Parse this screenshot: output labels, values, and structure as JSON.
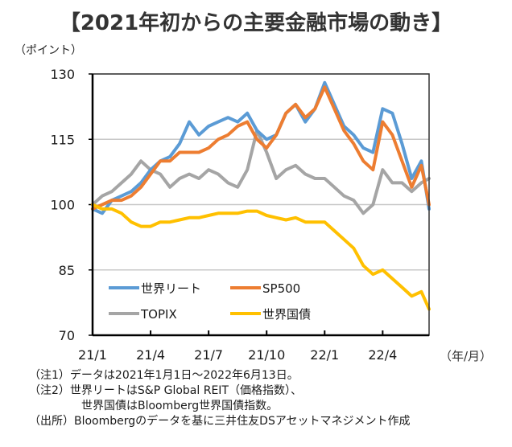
{
  "title": "【2021年初からの主要金融市場の動き】",
  "notes": [
    "（注1）データは2021年1月1日～2022年6月13日。",
    "（注2）世界リートはS&P Global REIT（価格指数）、",
    "世界国債はBloomberg世界国債指数。",
    "（出所）Bloombergのデータを基に三井住友DSアセットマネジメント作成"
  ],
  "chart_data": {
    "type": "line",
    "title": "【2021年初からの主要金融市場の動き】",
    "ylabel": "（ポイント）",
    "xlabel": "（年/月）",
    "ylim": [
      70,
      130
    ],
    "yticks": [
      70,
      85,
      100,
      115,
      130
    ],
    "xticks": [
      {
        "label": "21/1",
        "month": 0
      },
      {
        "label": "21/4",
        "month": 3
      },
      {
        "label": "21/7",
        "month": 6
      },
      {
        "label": "21/10",
        "month": 9
      },
      {
        "label": "22/1",
        "month": 12
      },
      {
        "label": "22/4",
        "month": 15
      }
    ],
    "xlim_months": [
      0,
      17.4
    ],
    "grid": "horizontal",
    "legend_position": "bottom-left inside",
    "x": [
      0,
      0.5,
      1,
      1.5,
      2,
      2.5,
      3,
      3.5,
      4,
      4.5,
      5,
      5.5,
      6,
      6.5,
      7,
      7.5,
      8,
      8.5,
      9,
      9.5,
      10,
      10.5,
      11,
      11.5,
      12,
      12.5,
      13,
      13.5,
      14,
      14.5,
      15,
      15.5,
      16,
      16.5,
      17,
      17.4
    ],
    "series": [
      {
        "name": "世界リート",
        "color": "#5b9bd5",
        "values": [
          99,
          98,
          101,
          102,
          103,
          105,
          108,
          110,
          111,
          114,
          119,
          116,
          118,
          119,
          120,
          119,
          121,
          117,
          115,
          116,
          121,
          123,
          119,
          122,
          128,
          123,
          118,
          116,
          113,
          112,
          122,
          121,
          114,
          106,
          110,
          99
        ]
      },
      {
        "name": "SP500",
        "color": "#ed7d31",
        "values": [
          99,
          100,
          101,
          101,
          102,
          104,
          107,
          110,
          110,
          112,
          112,
          112,
          113,
          115,
          116,
          118,
          119,
          115,
          113,
          116,
          121,
          123,
          120,
          122,
          127,
          122,
          117,
          114,
          110,
          108,
          119,
          116,
          110,
          104,
          109,
          100
        ]
      },
      {
        "name": "TOPIX",
        "color": "#a5a5a5",
        "values": [
          100,
          102,
          103,
          105,
          107,
          110,
          108,
          107,
          104,
          106,
          107,
          106,
          108,
          107,
          105,
          104,
          108,
          117,
          112,
          106,
          108,
          109,
          107,
          106,
          106,
          104,
          102,
          101,
          98,
          100,
          108,
          105,
          105,
          103,
          105,
          106
        ]
      },
      {
        "name": "世界国債",
        "color": "#ffc000",
        "values": [
          100,
          99,
          99,
          98,
          96,
          95,
          95,
          96,
          96,
          96.5,
          97,
          97,
          97.5,
          98,
          98,
          98,
          98.5,
          98.5,
          97.5,
          97,
          96.5,
          97,
          96,
          96,
          96,
          94,
          92,
          90,
          86,
          84,
          85,
          83,
          81,
          79,
          80,
          76
        ]
      }
    ]
  }
}
